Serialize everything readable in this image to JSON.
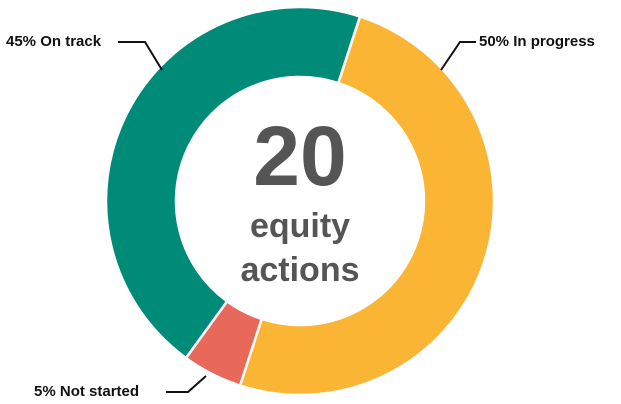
{
  "chart_data": {
    "type": "donut",
    "categories": [
      "In progress",
      "Not started",
      "On track"
    ],
    "values": [
      50,
      5,
      45
    ],
    "value_labels": [
      "50%",
      "5%",
      "45%"
    ],
    "colors": [
      "#fbb534",
      "#e8685a",
      "#008a78"
    ],
    "center": {
      "value": 20,
      "lines": [
        "equity",
        "actions"
      ]
    }
  }
}
